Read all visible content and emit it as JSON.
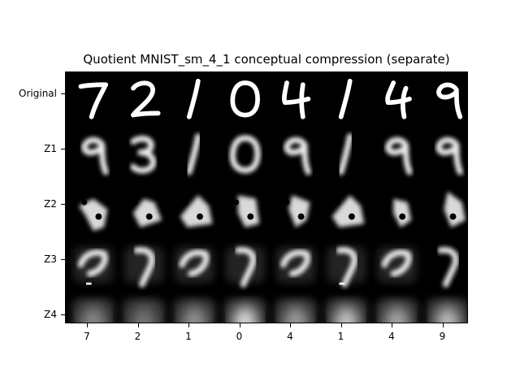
{
  "title": "Quotient MNIST_sm_4_1 conceptual compression (separate)",
  "rows": [
    "Original",
    "Z1",
    "Z2",
    "Z3",
    "Z4"
  ],
  "columns": [
    "7",
    "2",
    "1",
    "0",
    "4",
    "1",
    "4",
    "9"
  ],
  "colors": {
    "background": "#ffffff",
    "panel": "#000000",
    "ink": "#ffffff",
    "text": "#000000"
  }
}
